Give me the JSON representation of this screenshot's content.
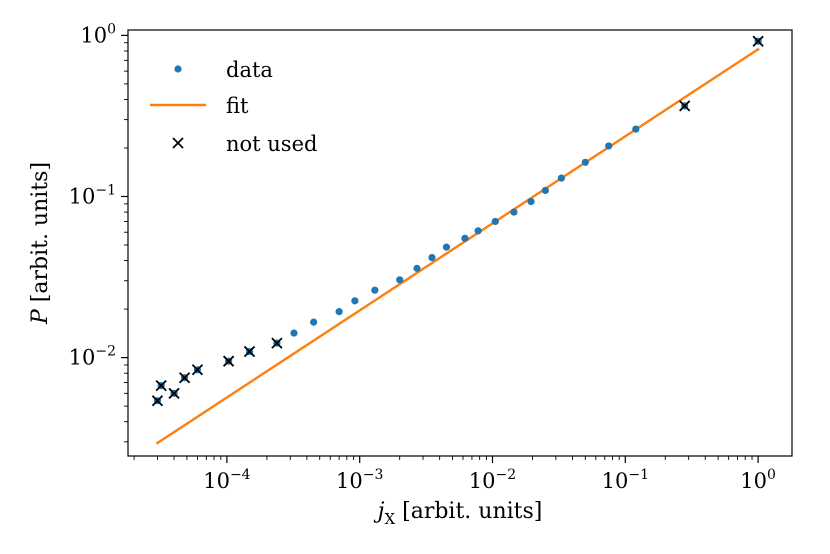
{
  "chart_data": {
    "type": "scatter",
    "xscale": "log",
    "yscale": "log",
    "xlim": [
      1.8e-05,
      1.8
    ],
    "ylim": [
      0.00245,
      1.08
    ],
    "xlabel": "j_X [arbit. units]",
    "ylabel": "P [arbit. units]",
    "xlabel_parts": {
      "var": "j",
      "sub": "X",
      "rest": " [arbit. units]"
    },
    "ylabel_parts": {
      "var": "P",
      "rest": " [arbit. units]"
    },
    "xticks": [
      {
        "base": "10",
        "exp": "−4",
        "value": 0.0001
      },
      {
        "base": "10",
        "exp": "−3",
        "value": 0.001
      },
      {
        "base": "10",
        "exp": "−2",
        "value": 0.01
      },
      {
        "base": "10",
        "exp": "−1",
        "value": 0.1
      },
      {
        "base": "10",
        "exp": "0",
        "value": 1
      }
    ],
    "yticks": [
      {
        "base": "10",
        "exp": "−2",
        "value": 0.01
      },
      {
        "base": "10",
        "exp": "−1",
        "value": 0.1
      },
      {
        "base": "10",
        "exp": "0",
        "value": 1
      }
    ],
    "legend": {
      "position": "upper-left",
      "entries": [
        {
          "label": "data",
          "kind": "marker-dot"
        },
        {
          "label": "fit",
          "kind": "line"
        },
        {
          "label": "not used",
          "kind": "marker-x"
        }
      ]
    },
    "series": [
      {
        "name": "data",
        "color": "#1f77b4",
        "x": [
          3e-05,
          3.2e-05,
          4e-05,
          4.8e-05,
          6e-05,
          0.000103,
          0.000148,
          0.000238,
          0.00032,
          0.00045,
          0.0007,
          0.00092,
          0.0013,
          0.002,
          0.0027,
          0.0035,
          0.0045,
          0.0062,
          0.0078,
          0.0105,
          0.0145,
          0.0195,
          0.025,
          0.033,
          0.05,
          0.075,
          0.12,
          0.28,
          1.0
        ],
        "y": [
          0.0054,
          0.0067,
          0.006,
          0.0075,
          0.0084,
          0.0095,
          0.0109,
          0.0123,
          0.0142,
          0.0166,
          0.0193,
          0.0225,
          0.0262,
          0.0304,
          0.0358,
          0.0418,
          0.0485,
          0.055,
          0.0612,
          0.07,
          0.08,
          0.093,
          0.109,
          0.13,
          0.163,
          0.206,
          0.262,
          0.365,
          0.92
        ]
      },
      {
        "name": "fit",
        "color": "#ff7f0e",
        "x": [
          3e-05,
          1.0
        ],
        "y": [
          0.00295,
          0.82
        ]
      },
      {
        "name": "not used",
        "color": "#000000",
        "x": [
          3e-05,
          3.2e-05,
          4e-05,
          4.8e-05,
          6e-05,
          0.000103,
          0.000148,
          0.000238,
          0.28,
          1.0
        ],
        "y": [
          0.0054,
          0.0067,
          0.006,
          0.0075,
          0.0084,
          0.0095,
          0.0109,
          0.0123,
          0.365,
          0.92
        ]
      }
    ]
  }
}
